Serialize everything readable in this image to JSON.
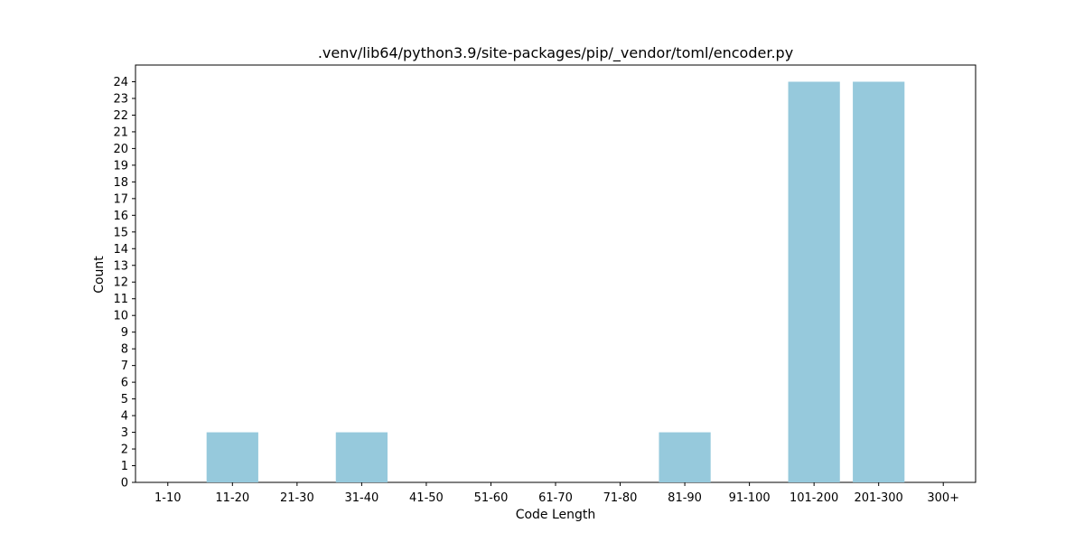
{
  "chart_data": {
    "type": "bar",
    "title": ".venv/lib64/python3.9/site-packages/pip/_vendor/toml/encoder.py",
    "xlabel": "Code Length",
    "ylabel": "Count",
    "categories": [
      "1-10",
      "11-20",
      "21-30",
      "31-40",
      "41-50",
      "51-60",
      "61-70",
      "71-80",
      "81-90",
      "91-100",
      "101-200",
      "201-300",
      "300+"
    ],
    "values": [
      0,
      3,
      0,
      3,
      0,
      0,
      0,
      0,
      3,
      0,
      24,
      24,
      0
    ],
    "ylim": [
      0,
      24.0
    ],
    "yticks": [
      0,
      1,
      2,
      3,
      4,
      5,
      6,
      7,
      8,
      9,
      10,
      11,
      12,
      13,
      14,
      15,
      16,
      17,
      18,
      19,
      20,
      21,
      22,
      23,
      24
    ],
    "grid": false,
    "bar_color": "#96c9dc"
  }
}
